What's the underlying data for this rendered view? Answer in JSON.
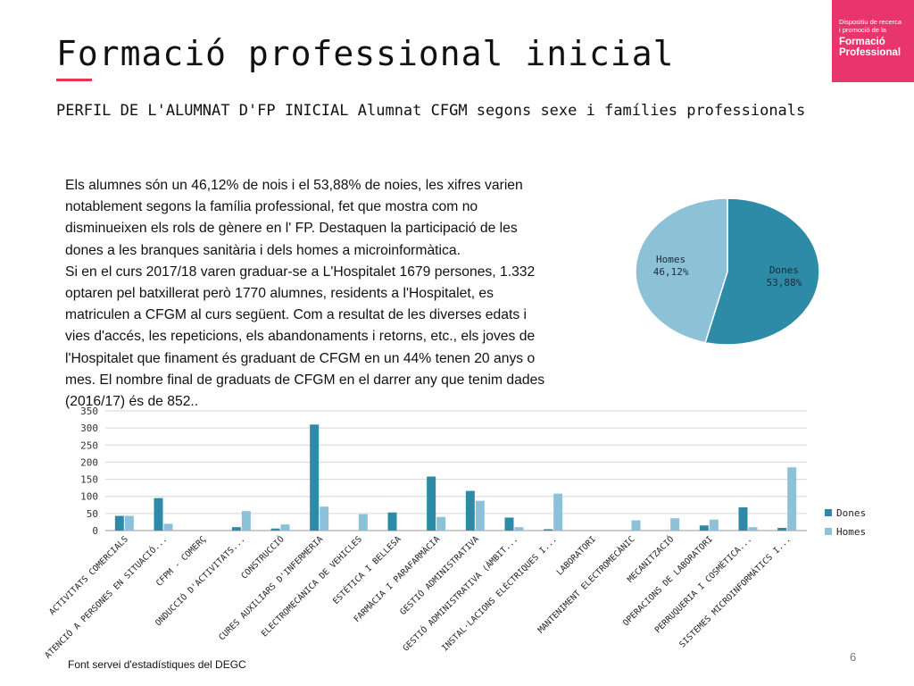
{
  "slide": {
    "title": "Formació professional inicial",
    "subtitle": "PERFIL DE L'ALUMNAT D'FP INICIAL Alumnat  CFGM segons sexe i famílies professionals",
    "logo_line1": "Dispositiu de recerca",
    "logo_line2": "i promoció de la",
    "logo_line3": "Formació",
    "logo_line4": "Professional",
    "paragraph1": "Els alumnes són un 46,12% de nois i el 53,88% de noies, les xifres varien notablement segons la família professional, fet que mostra com no disminueixen els rols de gènere en l' FP. Destaquen la participació de les dones a les branques sanitària i dels homes a microinformàtica.",
    "paragraph2": "Si en el curs 2017/18 varen graduar-se a L'Hospitalet 1679 persones, 1.332 optaren pel batxillerat però 1770 alumnes, residents a l'Hospitalet, es matriculen a CFGM al curs següent. Com a resultat de les diverses edats i vies d'accés, les repeticions, els abandonaments i retorns, etc., els joves de l'Hospitalet que finament és graduant de CFGM en un 44% tenen 20 anys o mes. El nombre final de graduats de CFGM en el darrer any que tenim dades (2016/17) és de 852..",
    "source": "Font  servei d'estadístiques del DEGC",
    "page_number": "6"
  },
  "colors": {
    "dones": "#2e8ba8",
    "homes": "#8cc1d7",
    "accent": "#e8354f",
    "logo_bg": "#e8356e"
  },
  "chart_data": [
    {
      "type": "pie",
      "slices": [
        {
          "label": "Dones",
          "value_label": "53,88%",
          "value": 53.88
        },
        {
          "label": "Homes",
          "value_label": "46,12%",
          "value": 46.12
        }
      ]
    },
    {
      "type": "bar",
      "categories": [
        "ACTIVITATS COMERCIALS",
        "ATENCIÓ A PERSONES EN SITUACIÓ...",
        "CFPM - COMERÇ",
        "ONDUCCIÓ D'ACTIVITATS...",
        "CONSTRUCCIÓ",
        "CURES AUXILIARS D'INFERMERIA",
        "ELECTROMECÀNICA DE VEHICLES",
        "ESTÈTICA I BELLESA",
        "FARMÀCIA I PARAFARMÀCIA",
        "GESTIÓ ADMINISTRATIVA",
        "GESTIÓ ADMINISTRATIVA (ÀMBIT...",
        "INSTAL·LACIONS ELÈCTRIQUES I...",
        "LABORATORI",
        "MANTENIMENT ELECTROMECÀNIC",
        "MECANITZACIÓ",
        "OPERACIONS DE LABORATORI",
        "PERRUQUERIA I COSMÈTICA...",
        "SISTEMES MICROINFORMÀTICS I..."
      ],
      "series": [
        {
          "name": "Dones",
          "values": [
            43,
            95,
            0,
            10,
            6,
            310,
            0,
            53,
            158,
            116,
            38,
            4,
            0,
            0,
            0,
            15,
            68,
            8
          ]
        },
        {
          "name": "Homes",
          "values": [
            43,
            20,
            0,
            57,
            18,
            70,
            48,
            0,
            40,
            87,
            10,
            108,
            0,
            30,
            36,
            32,
            10,
            185
          ]
        }
      ],
      "ylim": [
        0,
        350
      ],
      "yticks": [
        0,
        50,
        100,
        150,
        200,
        250,
        300,
        350
      ],
      "grid": true,
      "legend": "right"
    }
  ]
}
